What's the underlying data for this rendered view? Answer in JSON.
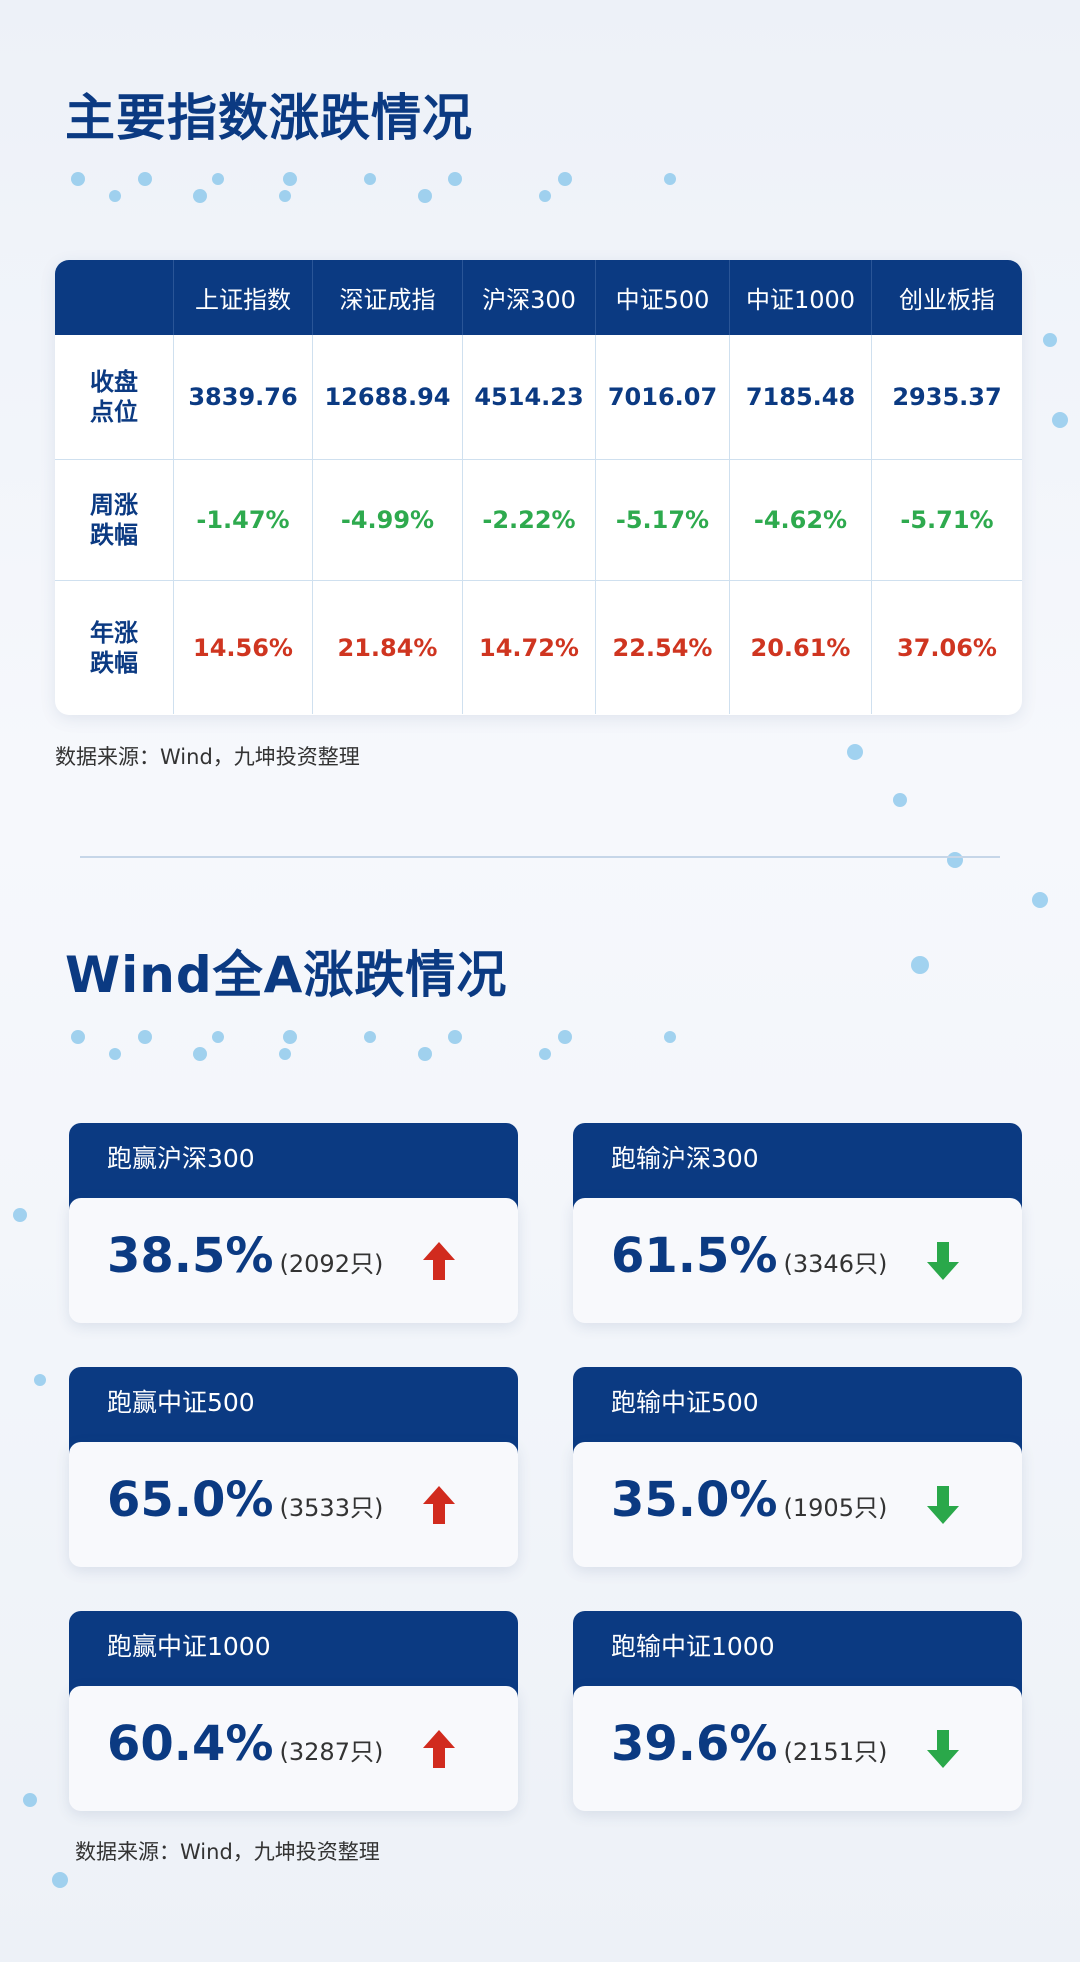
{
  "section1": {
    "title": "主要指数涨跌情况",
    "table": {
      "header": [
        "上证指数",
        "深证成指",
        "沪深300",
        "中证500",
        "中证1000",
        "创业板指"
      ],
      "rows": [
        {
          "label": "收盘点位",
          "cells": [
            "3839.76",
            "12688.94",
            "4514.23",
            "7016.07",
            "7185.48",
            "2935.37"
          ],
          "color": "#0b3a82"
        },
        {
          "label": "周涨跌幅",
          "cells": [
            "-1.47%",
            "-4.99%",
            "-2.22%",
            "-5.17%",
            "-4.62%",
            "-5.71%"
          ],
          "color": "#2eaa4e"
        },
        {
          "label": "年涨跌幅",
          "cells": [
            "14.56%",
            "21.84%",
            "14.72%",
            "22.54%",
            "20.61%",
            "37.06%"
          ],
          "color": "#cf3520"
        }
      ]
    },
    "source": "数据来源：Wind，九坤投资整理"
  },
  "section2": {
    "title": "Wind全A涨跌情况",
    "cards": [
      {
        "label": "跑赢沪深300",
        "percent": "38.5%",
        "count": "(2092只)",
        "arrow": "up"
      },
      {
        "label": "跑输沪深300",
        "percent": "61.5%",
        "count": "(3346只)",
        "arrow": "down"
      },
      {
        "label": "跑赢中证500",
        "percent": "65.0%",
        "count": "(3533只)",
        "arrow": "up"
      },
      {
        "label": "跑输中证500",
        "percent": "35.0%",
        "count": "(1905只)",
        "arrow": "down"
      },
      {
        "label": "跑赢中证1000",
        "percent": "60.4%",
        "count": "(3287只)",
        "arrow": "up"
      },
      {
        "label": "跑输中证1000",
        "percent": "39.6%",
        "count": "(2151只)",
        "arrow": "down"
      }
    ],
    "source": "数据来源：Wind，九坤投资整理"
  }
}
